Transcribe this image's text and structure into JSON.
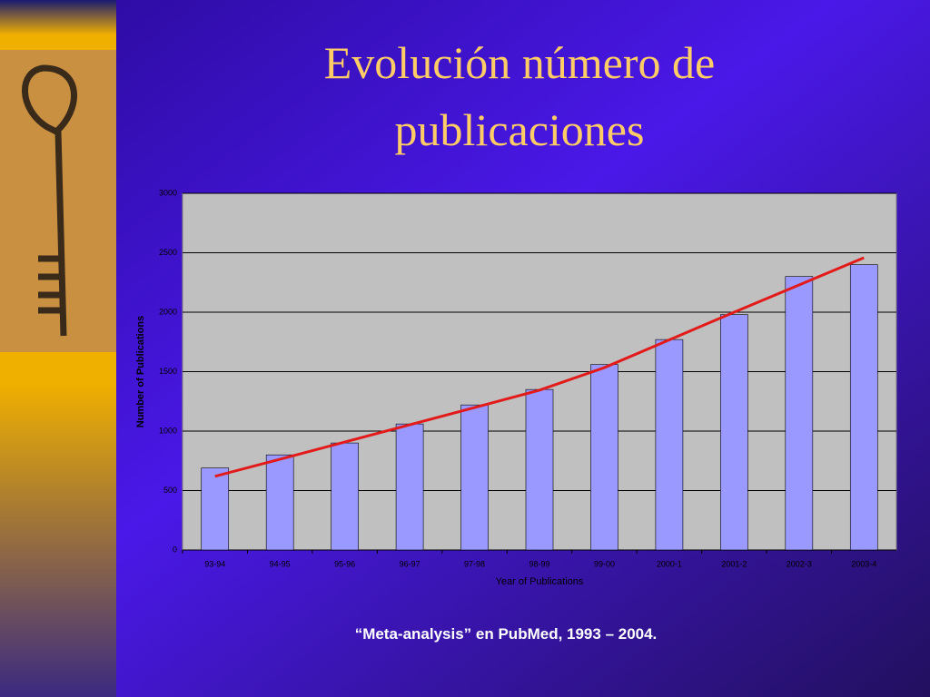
{
  "slide": {
    "title": [
      "Evolución número de",
      "publicaciones"
    ],
    "caption": "“Meta-analysis” en PubMed, 1993 – 2004."
  },
  "chart_data": {
    "type": "bar",
    "categories": [
      "93-94",
      "94-95",
      "95-96",
      "96-97",
      "97-98",
      "98-99",
      "99-00",
      "2000-1",
      "2001-2",
      "2002-3",
      "2003-4"
    ],
    "series": [
      {
        "type": "bar",
        "color": "#9999ff",
        "values": [
          690,
          800,
          900,
          1060,
          1220,
          1350,
          1560,
          1770,
          1980,
          2300,
          2400
        ]
      },
      {
        "type": "line",
        "color": "#e31a1a",
        "values": [
          620,
          763,
          908,
          1053,
          1198,
          1344,
          1534,
          1767,
          2000,
          2229,
          2458
        ]
      }
    ],
    "x_label": "Year of Publications",
    "y_label": "Number of Publications",
    "ylim": [
      0,
      3000
    ],
    "yticks": [
      0,
      500,
      1000,
      1500,
      2000,
      2500,
      3000
    ],
    "grid": true
  }
}
